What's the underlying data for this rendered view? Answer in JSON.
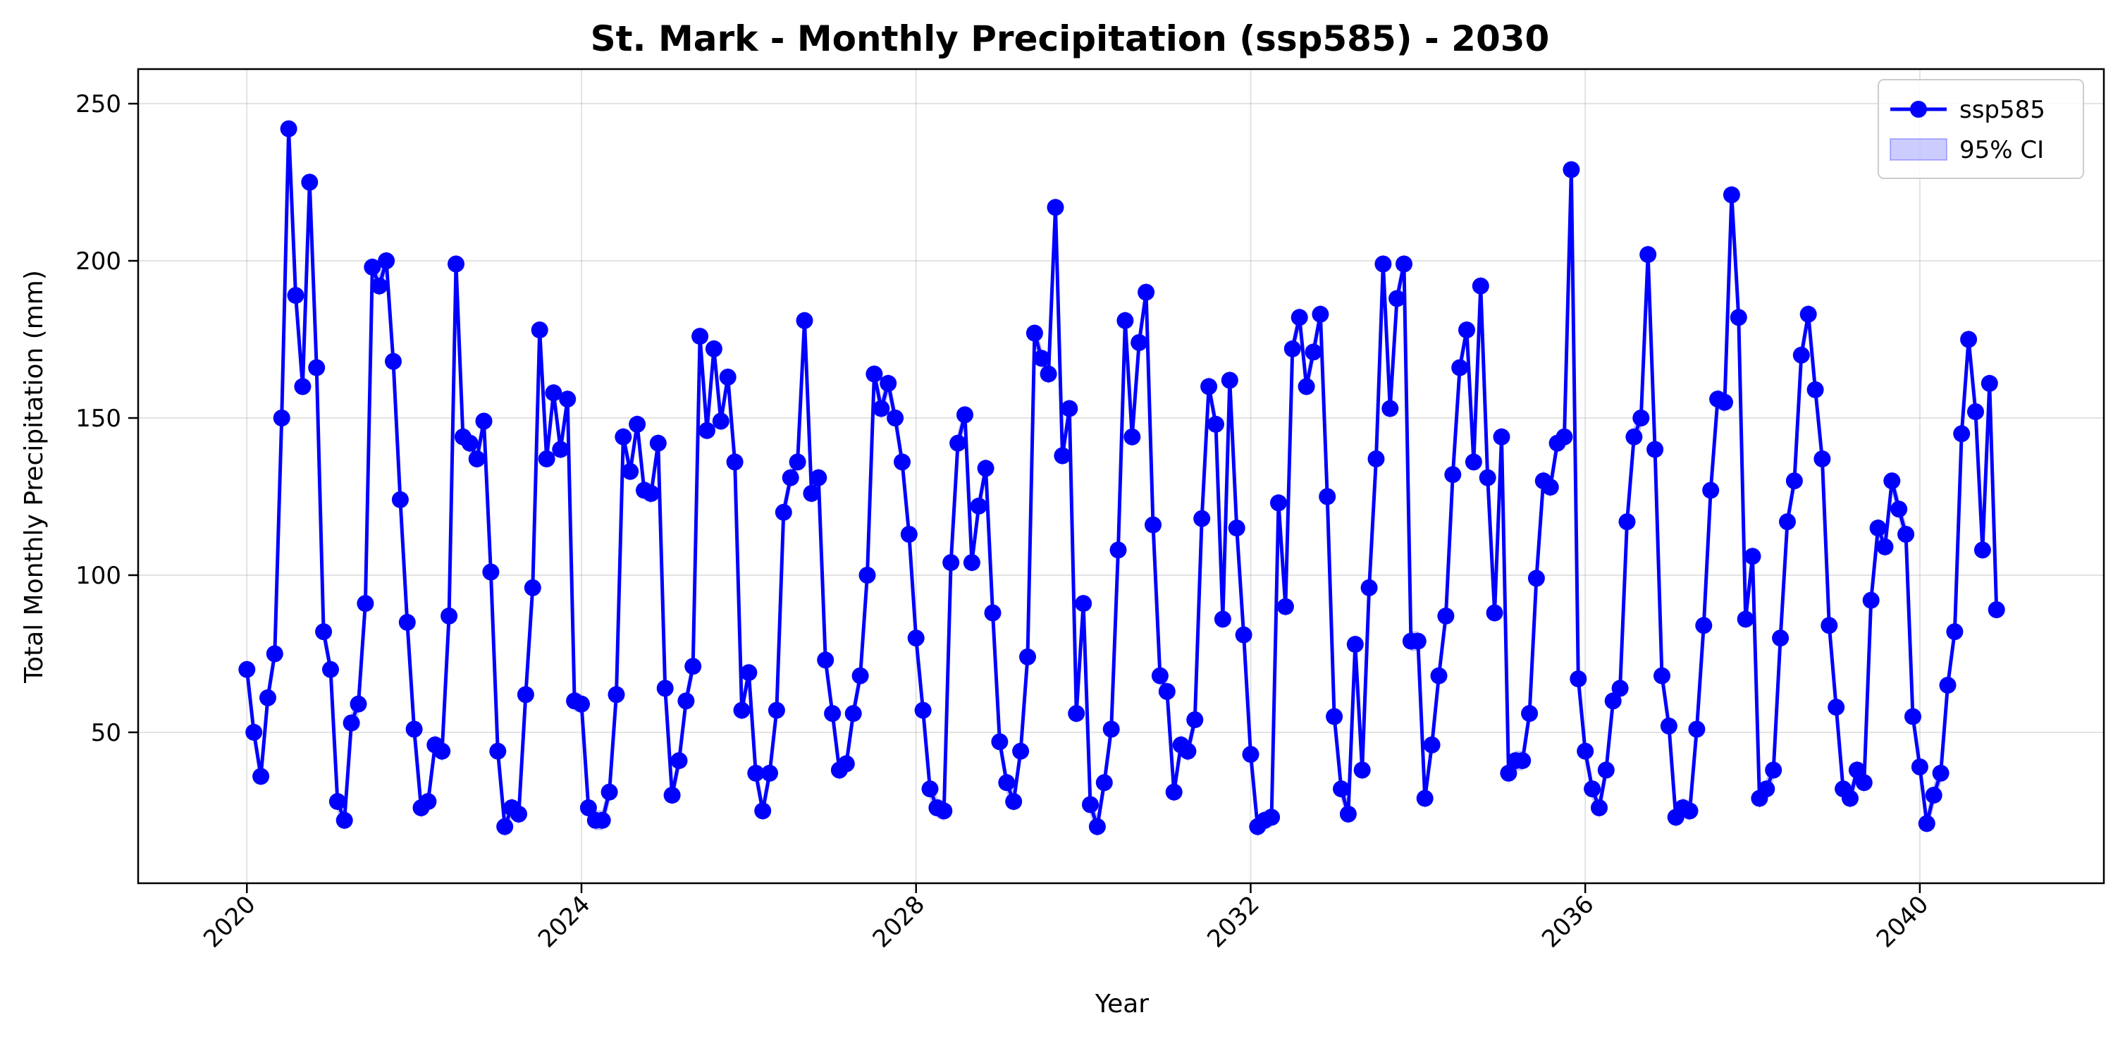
{
  "chart_data": {
    "type": "line",
    "title": "St. Mark - Monthly Precipitation (ssp585) - 2030",
    "xlabel": "Year",
    "ylabel": "Total Monthly Precipitation (mm)",
    "xlim": [
      2018.7,
      2042.2
    ],
    "ylim": [
      2,
      261
    ],
    "grid": true,
    "legend_position": "top-right",
    "x_ticks": [
      "2020",
      "2024",
      "2028",
      "2032",
      "2036",
      "2040"
    ],
    "y_ticks": [
      "50",
      "100",
      "150",
      "200",
      "250"
    ],
    "x_start": "2020-01",
    "x_step": "1 month",
    "series": [
      {
        "name": "ssp585",
        "color": "#0000ff",
        "marker": "circle",
        "ci_band": "±3 mm",
        "values": [
          70,
          50,
          36,
          61,
          75,
          150,
          242,
          189,
          160,
          225,
          166,
          82,
          70,
          28,
          22,
          53,
          59,
          91,
          198,
          192,
          200,
          168,
          124,
          85,
          51,
          26,
          28,
          46,
          44,
          87,
          199,
          144,
          142,
          137,
          149,
          101,
          44,
          20,
          26,
          24,
          62,
          96,
          178,
          137,
          158,
          140,
          156,
          60,
          59,
          26,
          22,
          22,
          31,
          62,
          144,
          133,
          148,
          127,
          126,
          142,
          64,
          30,
          41,
          60,
          71,
          176,
          146,
          172,
          149,
          163,
          136,
          57,
          69,
          37,
          25,
          37,
          57,
          120,
          131,
          136,
          181,
          126,
          131,
          73,
          56,
          38,
          40,
          56,
          68,
          100,
          164,
          153,
          161,
          150,
          136,
          113,
          80,
          57,
          32,
          26,
          25,
          104,
          142,
          151,
          104,
          122,
          134,
          88,
          47,
          34,
          28,
          44,
          74,
          177,
          169,
          164,
          217,
          138,
          153,
          56,
          91,
          27,
          20,
          34,
          51,
          108,
          181,
          144,
          174,
          190,
          116,
          68,
          63,
          31,
          46,
          44,
          54,
          118,
          160,
          148,
          86,
          162,
          115,
          81,
          43,
          20,
          22,
          23,
          123,
          90,
          172,
          182,
          160,
          171,
          183,
          125,
          55,
          32,
          24,
          78,
          38,
          96,
          137,
          199,
          153,
          188,
          199,
          79,
          79,
          29,
          46,
          68,
          87,
          132,
          166,
          178,
          136,
          192,
          131,
          88,
          144,
          37,
          41,
          41,
          56,
          99,
          130,
          128,
          142,
          144,
          229,
          67,
          44,
          32,
          26,
          38,
          60,
          64,
          117,
          144,
          150,
          202,
          140,
          68,
          52,
          23,
          26,
          25,
          51,
          84,
          127,
          156,
          155,
          221,
          182,
          86,
          106,
          29,
          32,
          38,
          80,
          117,
          130,
          170,
          183,
          159,
          137,
          84,
          58,
          32,
          29,
          38,
          34,
          92,
          115,
          109,
          130,
          121,
          113,
          55,
          39,
          21,
          30,
          37,
          65,
          82,
          145,
          175,
          152,
          108,
          161,
          89
        ]
      }
    ],
    "legend": [
      {
        "label": "ssp585",
        "kind": "line-marker",
        "color": "#0000ff"
      },
      {
        "label": "95% CI",
        "kind": "band",
        "color": "#0000ff"
      }
    ]
  }
}
